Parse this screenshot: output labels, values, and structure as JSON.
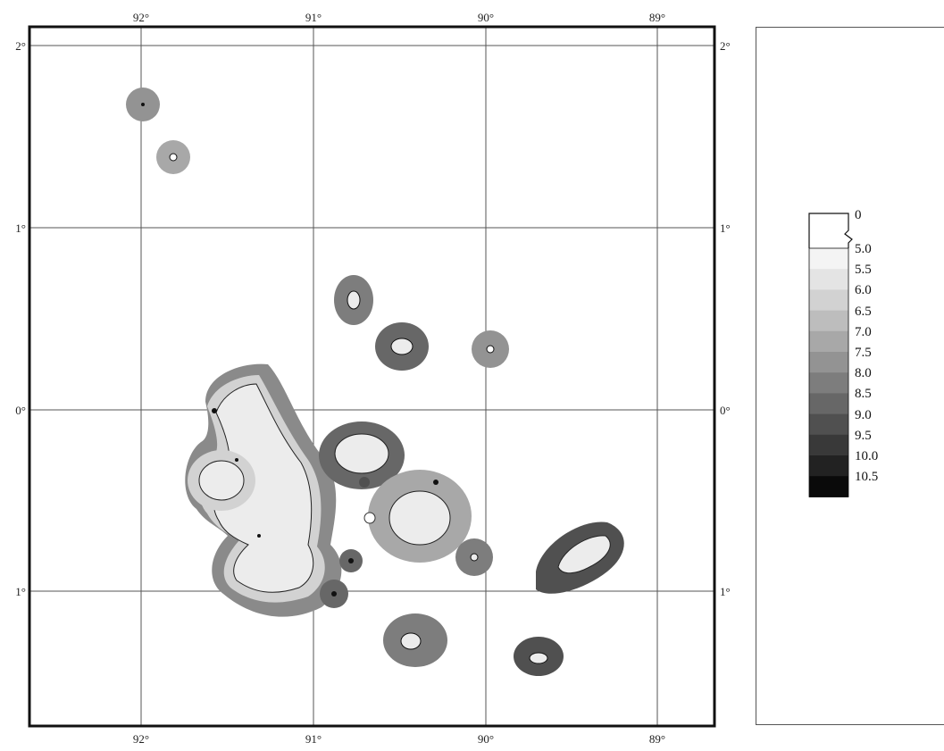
{
  "map": {
    "top_labels": [
      "92°",
      "91°",
      "90°",
      "89°"
    ],
    "bottom_labels": [
      "92°",
      "91°",
      "90°",
      "89°"
    ],
    "left_labels": [
      "2°",
      "1°",
      "0°",
      "1°"
    ],
    "right_labels": [
      "2°",
      "1°",
      "0°",
      "1°"
    ]
  },
  "legend": {
    "top_label": "0",
    "entries": [
      {
        "label": "5.0",
        "color": "#f4f4f4"
      },
      {
        "label": "5.5",
        "color": "#e4e4e4"
      },
      {
        "label": "6.0",
        "color": "#d2d2d2"
      },
      {
        "label": "6.5",
        "color": "#bdbdbd"
      },
      {
        "label": "7.0",
        "color": "#a8a8a8"
      },
      {
        "label": "7.5",
        "color": "#939393"
      },
      {
        "label": "8.0",
        "color": "#7d7d7d"
      },
      {
        "label": "8.5",
        "color": "#676767"
      },
      {
        "label": "9.0",
        "color": "#505050"
      },
      {
        "label": "9.5",
        "color": "#393939"
      },
      {
        "label": "10.0",
        "color": "#222222"
      },
      {
        "label": "10.5",
        "color": "#0a0a0a"
      }
    ]
  }
}
